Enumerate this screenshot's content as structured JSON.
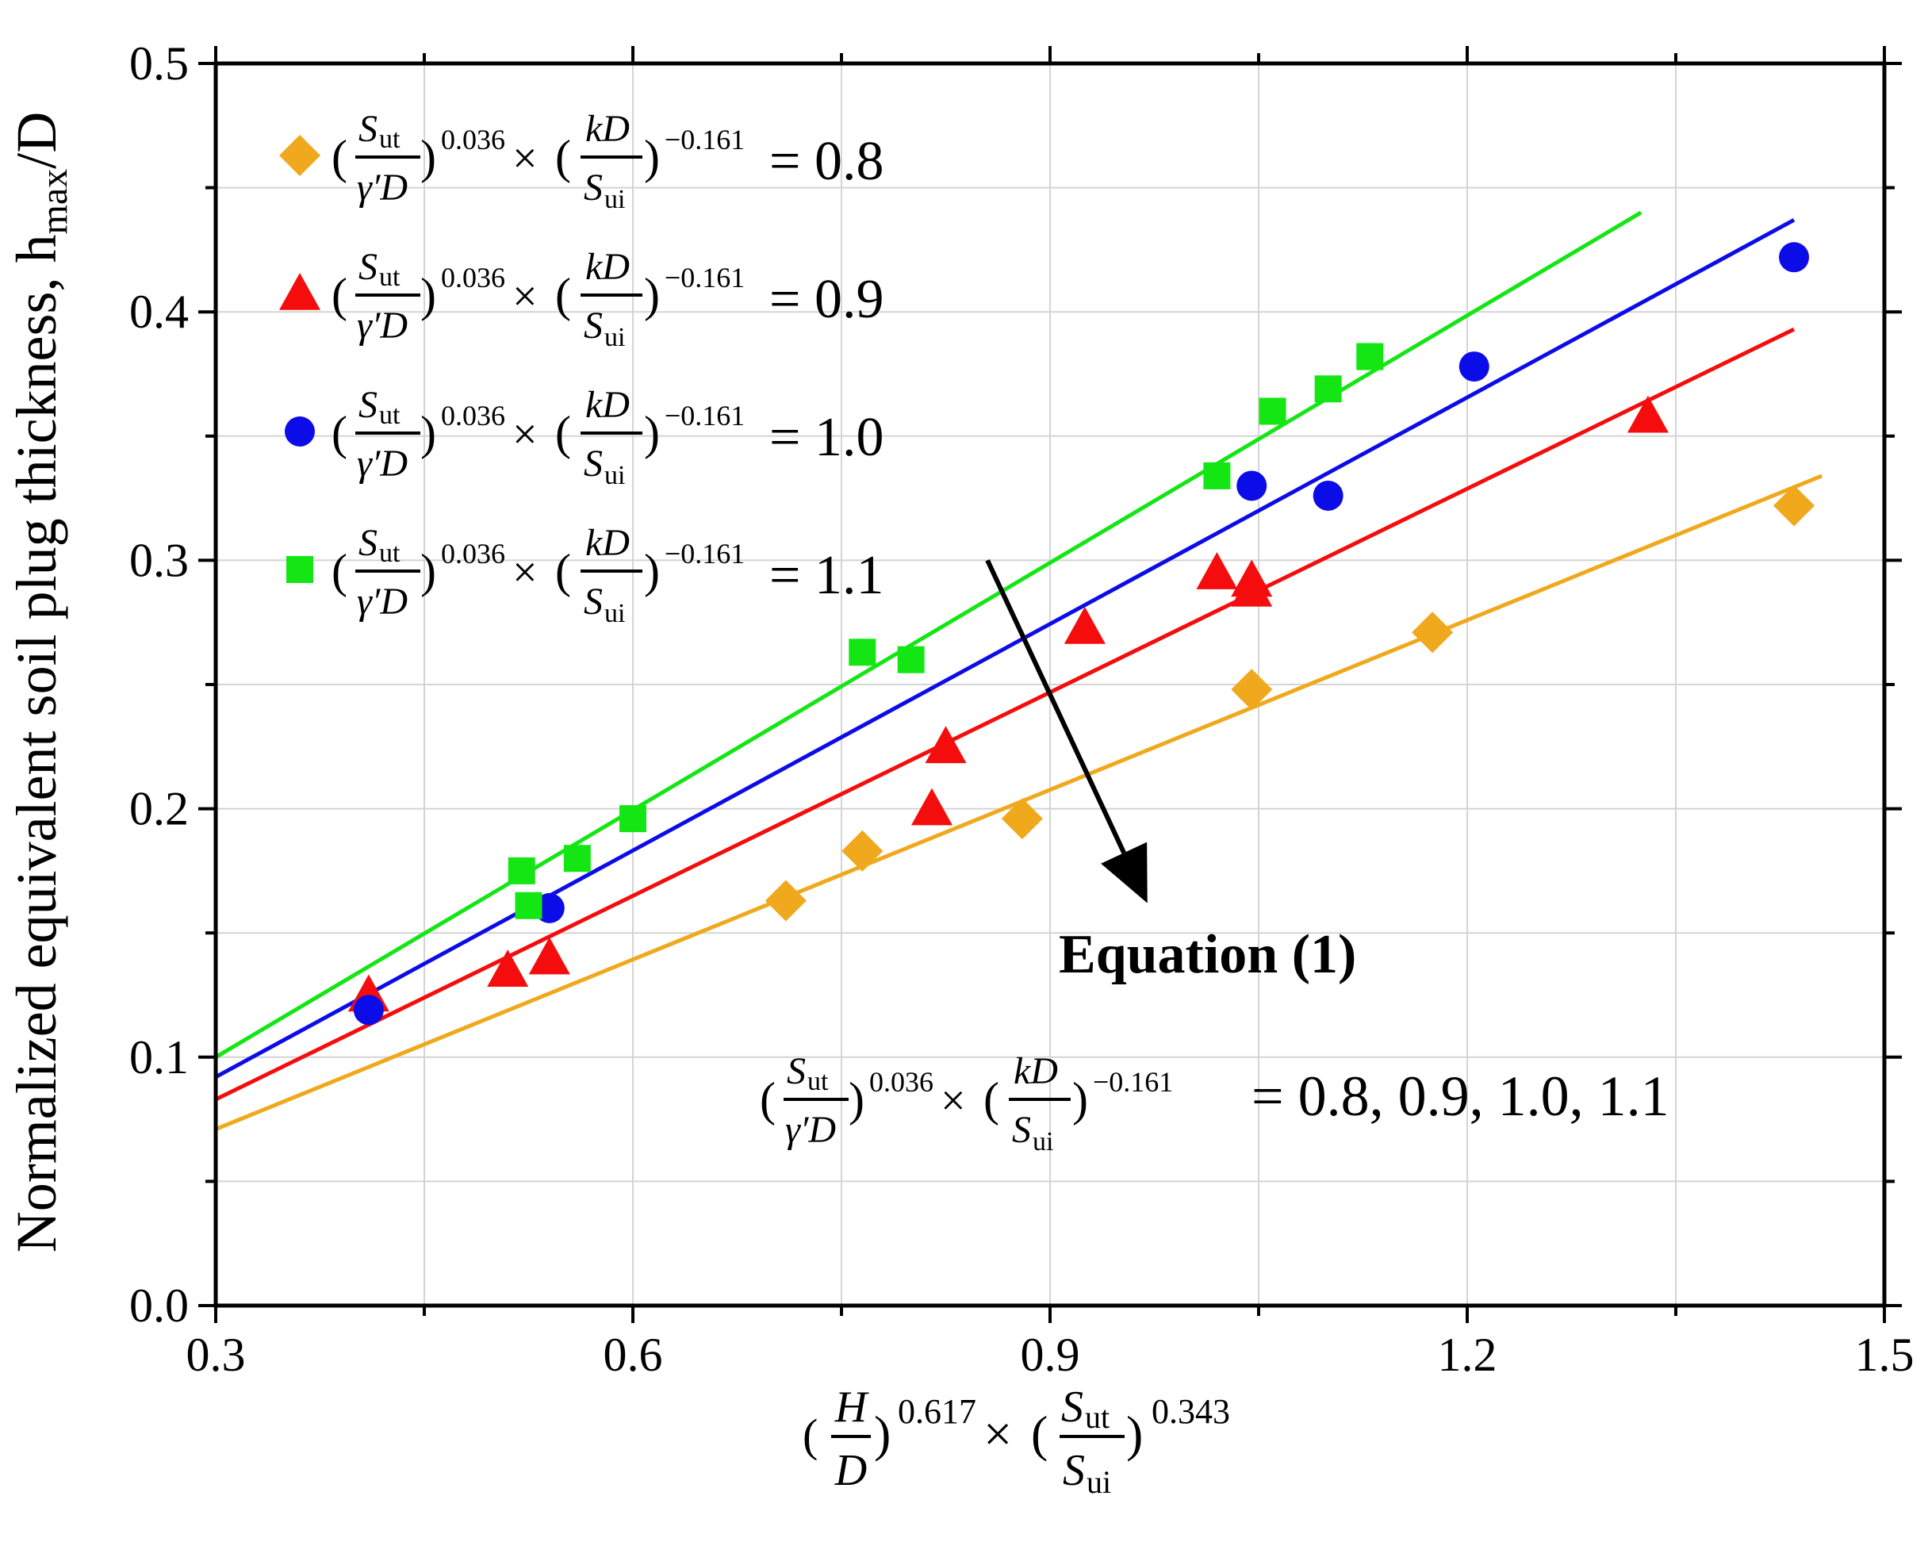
{
  "chart_data": {
    "type": "scatter",
    "title": "",
    "xlabel": "(H/D)^0.617 × (S_ut/S_ui)^0.343",
    "ylabel": "Normalized equivalent soil plug thickness, h_max/D",
    "xlim": [
      0.3,
      1.5
    ],
    "ylim": [
      0.0,
      0.5
    ],
    "x_ticks": [
      "0.3",
      "0.6",
      "0.9",
      "1.2",
      "1.5"
    ],
    "y_ticks": [
      "0.0",
      "0.1",
      "0.2",
      "0.3",
      "0.4",
      "0.5"
    ],
    "x_tick_values": [
      0.3,
      0.6,
      0.9,
      1.2,
      1.5
    ],
    "y_tick_values": [
      0.0,
      0.1,
      0.2,
      0.3,
      0.4,
      0.5
    ],
    "grid": true,
    "legend_position": "top-left",
    "series": [
      {
        "name": "(S_ut/γ'D)^0.036 × (kD/S_ui)^−0.161 = 0.8",
        "value_label": "= 0.8",
        "marker": "diamond",
        "color": "#F0A81C",
        "x": [
          0.71,
          0.765,
          0.88,
          1.045,
          1.175,
          1.435
        ],
        "y": [
          0.163,
          0.183,
          0.196,
          0.248,
          0.271,
          0.322
        ],
        "fit_x": [
          0.3,
          1.455
        ],
        "fit_y": [
          0.071,
          0.334
        ]
      },
      {
        "name": "(S_ut/γ'D)^0.036 × (kD/S_ui)^−0.161 = 0.9",
        "value_label": "= 0.9",
        "marker": "triangle",
        "color": "#F50D0D",
        "x": [
          0.41,
          0.51,
          0.54,
          0.815,
          0.825,
          0.925,
          1.02,
          1.045,
          1.045,
          1.33
        ],
        "y": [
          0.125,
          0.135,
          0.14,
          0.2,
          0.225,
          0.273,
          0.295,
          0.292,
          0.288,
          0.358
        ],
        "fit_x": [
          0.3,
          1.435
        ],
        "fit_y": [
          0.083,
          0.393
        ]
      },
      {
        "name": "(S_ut/γ'D)^0.036 × (kD/S_ui)^−0.161 = 1.0",
        "value_label": "= 1.0",
        "marker": "circle",
        "color": "#0C0CE8",
        "x": [
          0.41,
          0.54,
          1.045,
          1.1,
          1.205,
          1.435
        ],
        "y": [
          0.119,
          0.16,
          0.33,
          0.326,
          0.378,
          0.422
        ],
        "fit_x": [
          0.3,
          1.435
        ],
        "fit_y": [
          0.092,
          0.437
        ]
      },
      {
        "name": "(S_ut/γ'D)^0.036 × (kD/S_ui)^−0.161 = 1.1",
        "value_label": "= 1.1",
        "marker": "square",
        "color": "#14E614",
        "x": [
          0.52,
          0.525,
          0.56,
          0.6,
          0.765,
          0.8,
          1.02,
          1.06,
          1.1,
          1.13
        ],
        "y": [
          0.175,
          0.161,
          0.18,
          0.196,
          0.263,
          0.26,
          0.334,
          0.36,
          0.369,
          0.382
        ],
        "fit_x": [
          0.3,
          1.325
        ],
        "fit_y": [
          0.1,
          0.44
        ]
      }
    ],
    "annotations": {
      "arrow_label": "Equation (1)",
      "arrow_from": [
        0.855,
        0.3
      ],
      "arrow_to": [
        0.97,
        0.162
      ],
      "formula_values": "= 0.8, 0.9, 1.0, 1.1"
    }
  },
  "formula_parts": {
    "s_ut": "S",
    "s_ut_sub": "ut",
    "gamma_d": "γ′D",
    "exp1": "0.036",
    "kd": "kD",
    "s_ui": "S",
    "s_ui_sub": "ui",
    "exp2": "−0.161",
    "times": "×",
    "h": "H",
    "d": "D",
    "x_exp1": "0.617",
    "x_exp2": "0.343"
  },
  "ylabel_parts": {
    "main": "Normalized equivalent soil plug thickness, h",
    "sub": "max",
    "tail": "/D"
  }
}
